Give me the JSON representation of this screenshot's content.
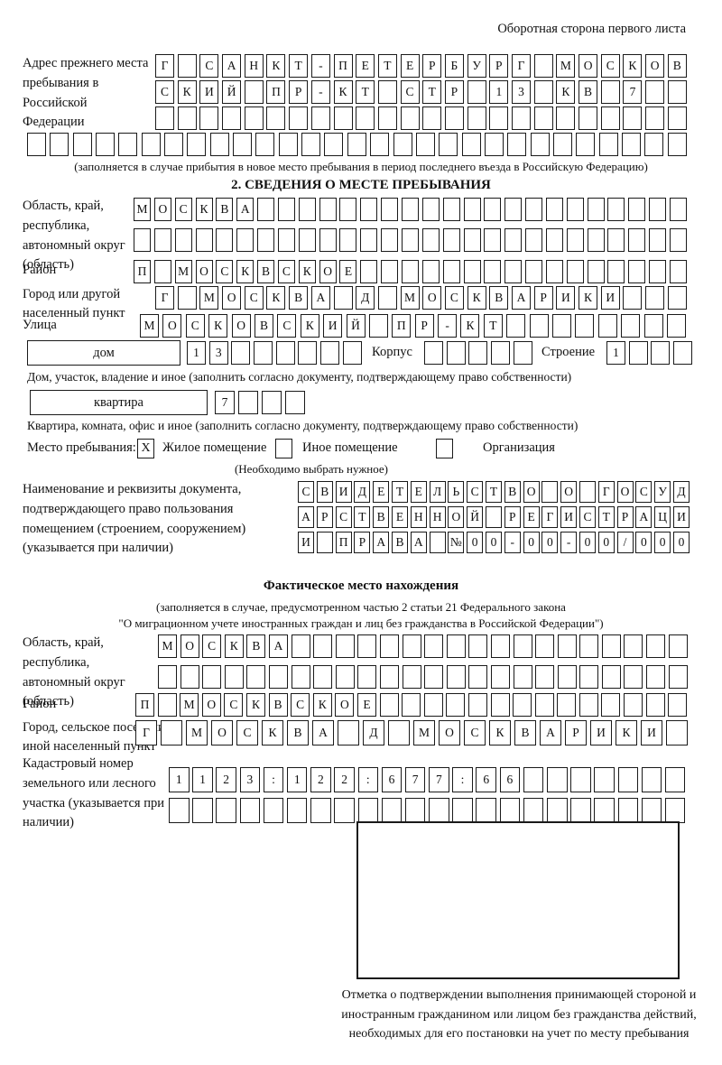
{
  "header": {
    "back_side_note": "Оборотная сторона первого листа"
  },
  "prev_address": {
    "label": "Адрес прежнего места пребывания в Российской Федерации",
    "row1": {
      "cells": "Г САНКТ-ПЕТЕРБУРГ МОСКОВ",
      "len": 24
    },
    "row2": {
      "cells": "СКИЙ ПР-КТ СТР 13 КВ 7",
      "len": 24
    },
    "row3": {
      "cells": "",
      "len": 24
    },
    "row4": {
      "cells": "",
      "len": 29
    },
    "note": "(заполняется в случае прибытия в новое место пребывания в период последнего въезда в Российскую Федерацию)"
  },
  "section2": {
    "title": "2. СВЕДЕНИЯ О МЕСТЕ ПРЕБЫВАНИЯ",
    "region": {
      "label": "Область, край, республика, автономный округ (область)",
      "row1": {
        "cells": "МОСКВА",
        "len": 27
      },
      "row2": {
        "cells": "",
        "len": 27
      }
    },
    "district": {
      "label": "Район",
      "row": {
        "cells": "П МОСКВСКОЕ",
        "len": 27
      }
    },
    "city": {
      "label": "Город или другой населенный пункт",
      "row": {
        "cells": "Г МОСКВА Д МОСКВАРИКИ",
        "len": 24
      }
    },
    "street": {
      "label": "Улица",
      "row": {
        "cells": "МОСКОВСКИЙ ПР-КТ",
        "len": 24
      }
    },
    "house": {
      "box_label": "дом",
      "row": {
        "cells": "13",
        "len": 8
      },
      "korpus_label": "Корпус",
      "korpus_row": {
        "cells": "",
        "len": 5
      },
      "stroenie_label": "Строение",
      "stroenie_row": {
        "cells": "1",
        "len": 4
      }
    },
    "house_note": "Дом, участок, владение и иное (заполнить согласно документу, подтверждающему право собственности)",
    "apartment": {
      "box_label": "квартира",
      "row": {
        "cells": "7",
        "len": 4
      }
    },
    "apartment_note": "Квартира, комната, офис и иное (заполнить согласно документу, подтверждающему право собственности)",
    "stay_type": {
      "label": "Место пребывания:",
      "option1": {
        "label": "Жилое помещение",
        "checked": "X"
      },
      "option2": {
        "label": "Иное помещение",
        "checked": ""
      },
      "option3": {
        "label": "Организация",
        "checked": ""
      },
      "note": "(Необходимо выбрать нужное)"
    },
    "doc": {
      "label": "Наименование и реквизиты документа, подтверждающего право пользования помещением (строением, сооружением) (указывается при наличии)",
      "row1": {
        "cells": "СВИДЕТЕЛЬСТВО О ГОСУД",
        "len": 21
      },
      "row2": {
        "cells": "АРСТВЕННОЙ РЕГИСТРАЦИ",
        "len": 21
      },
      "row3": {
        "cells": "И ПРАВА №00-00-00/000",
        "len": 21
      }
    }
  },
  "actual_location": {
    "title": "Фактическое место нахождения",
    "note1": "(заполняется в случае, предусмотренном частью 2 статьи 21 Федерального закона",
    "note2": "\"О миграционном учете иностранных граждан и лиц без гражданства в Российской Федерации\")",
    "region": {
      "label": "Область, край, республика, автономный округ (область)",
      "row1": {
        "cells": "МОСКВА",
        "len": 24
      },
      "row2": {
        "cells": "",
        "len": 24
      }
    },
    "district": {
      "label": "Район",
      "row": {
        "cells": "П МОСКВСКОЕ",
        "len": 25
      }
    },
    "settlement": {
      "label": "Город, сельское поселение, иной населенный пункт",
      "row": {
        "cells": "Г МОСКВА Д МОСКВАРИКИ",
        "len": 22
      }
    },
    "cadastral": {
      "label": "Кадастровый номер земельного или лесного участка (указывается при наличии)",
      "row1": {
        "cells": "1123:122:677:66",
        "len": 22
      },
      "row2": {
        "cells": "",
        "len": 22
      }
    }
  },
  "confirmation": {
    "note": "Отметка о подтверждении выполнения принимающей стороной и иностранным гражданином или лицом без гражданства действий, необходимых для его постановки на учет по месту пребывания"
  }
}
